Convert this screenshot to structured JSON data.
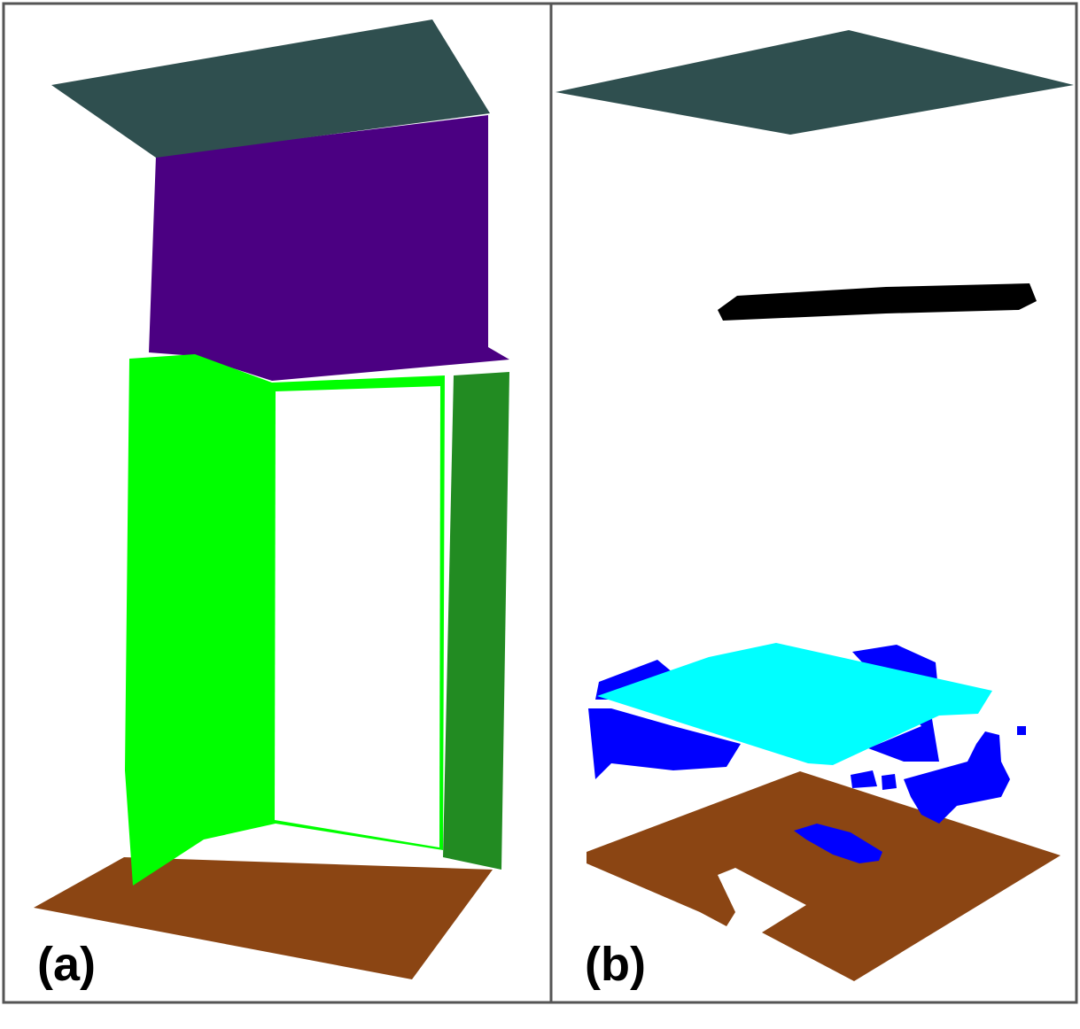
{
  "panels": [
    {
      "label": "(a)"
    },
    {
      "label": "(b)"
    }
  ],
  "colors": {
    "ceiling": "#2F4F4F",
    "wall_back": "#4B0082",
    "wall_left": "#00FF00",
    "wall_right": "#228B22",
    "floor": "#8B4513",
    "table": "#00FFFF",
    "chair": "#0000FF",
    "lamp": "#000000",
    "frame": "#555555"
  }
}
